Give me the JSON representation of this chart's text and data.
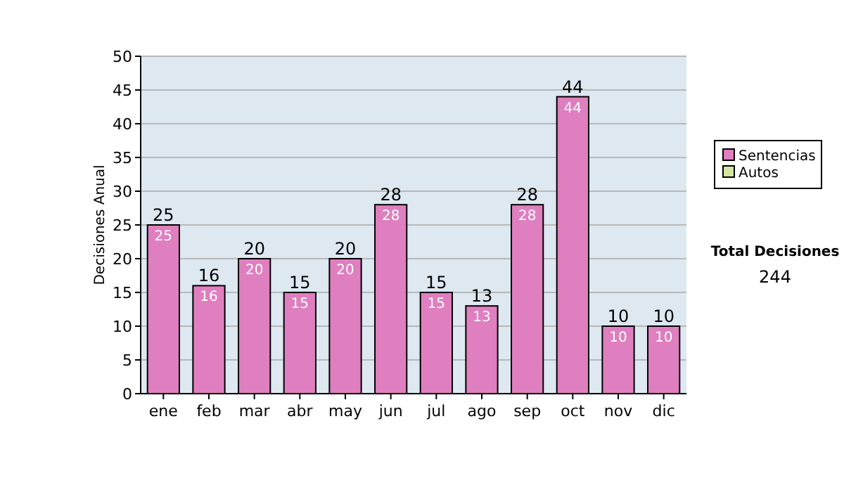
{
  "chart_data": {
    "type": "bar",
    "ylabel": "Decisiones Anual",
    "categories": [
      "ene",
      "feb",
      "mar",
      "abr",
      "may",
      "jun",
      "jul",
      "ago",
      "sep",
      "oct",
      "nov",
      "dic"
    ],
    "series": [
      {
        "name": "Sentencias",
        "color": "#df7fbf",
        "values": [
          25,
          16,
          20,
          15,
          20,
          28,
          15,
          13,
          28,
          44,
          10,
          10
        ],
        "value_labels": [
          "25",
          "16",
          "20",
          "15",
          "20",
          "28",
          "15",
          "13",
          "28",
          "44",
          "10",
          "10"
        ]
      },
      {
        "name": "Autos",
        "color": "#d4e6a0",
        "values": [
          0,
          0,
          0,
          0,
          0,
          0,
          0,
          0,
          0,
          0,
          0,
          0
        ],
        "value_labels": [
          null,
          null,
          null,
          null,
          null,
          null,
          null,
          null,
          null,
          null,
          null,
          null
        ]
      }
    ],
    "stacked": true,
    "totals": [
      "25",
      "16",
      "20",
      "15",
      "20",
      "28",
      "15",
      "13",
      "28",
      "44",
      "10",
      "10"
    ],
    "ylim": [
      0,
      50
    ],
    "yticks": [
      0,
      5,
      10,
      15,
      20,
      25,
      30,
      35,
      40,
      45,
      50
    ],
    "grid": "y",
    "legend": "right",
    "annotations": [
      "Total Decisiones",
      "244"
    ]
  }
}
